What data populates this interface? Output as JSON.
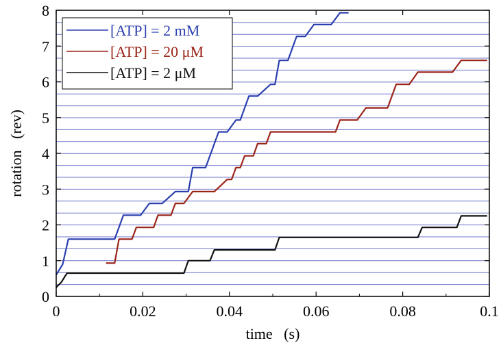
{
  "chart_data": {
    "type": "line",
    "title": "",
    "xlabel": "time   (s)",
    "ylabel": "rotation   (rev)",
    "xlim": [
      0,
      0.1
    ],
    "ylim": [
      0,
      8
    ],
    "xticks": [
      0,
      0.02,
      0.04,
      0.06,
      0.08,
      0.1
    ],
    "xtick_labels": [
      "0",
      "0.02",
      "0.04",
      "0.06",
      "0.08",
      "0.1"
    ],
    "yticks": [
      0,
      1,
      2,
      3,
      4,
      5,
      6,
      7,
      8
    ],
    "ytick_labels": [
      "0",
      "1",
      "2",
      "3",
      "4",
      "5",
      "6",
      "7",
      "8"
    ],
    "grid": {
      "horizontal_lines_every": 0.333,
      "color": "#6f74c8"
    },
    "legend": {
      "placement": "top-left"
    },
    "series": [
      {
        "name": "[ATP] = 2 mM",
        "color": "#2c3fae",
        "x": [
          0.0,
          0.0015,
          0.0028,
          0.0135,
          0.0155,
          0.0195,
          0.0215,
          0.0245,
          0.0275,
          0.0305,
          0.0315,
          0.0345,
          0.0375,
          0.0395,
          0.0415,
          0.0425,
          0.0445,
          0.0465,
          0.0495,
          0.0505,
          0.0515,
          0.0535,
          0.0555,
          0.0575,
          0.0595,
          0.0635,
          0.0655,
          0.0675
        ],
        "y": [
          0.6,
          0.9,
          1.6,
          1.6,
          2.27,
          2.27,
          2.6,
          2.6,
          2.93,
          2.93,
          3.6,
          3.6,
          4.6,
          4.6,
          4.93,
          4.93,
          5.6,
          5.6,
          5.93,
          5.93,
          6.6,
          6.6,
          7.27,
          7.27,
          7.6,
          7.6,
          7.93,
          7.93
        ]
      },
      {
        "name": "[ATP] = 20 μM",
        "color": "#9b2418",
        "x": [
          0.0115,
          0.0135,
          0.0145,
          0.0175,
          0.0185,
          0.0225,
          0.0235,
          0.0245,
          0.0265,
          0.0275,
          0.0295,
          0.0315,
          0.0345,
          0.0365,
          0.0395,
          0.0405,
          0.0415,
          0.0425,
          0.0435,
          0.0445,
          0.0455,
          0.0465,
          0.0475,
          0.0485,
          0.0495,
          0.0505,
          0.0525,
          0.0575,
          0.0645,
          0.0655,
          0.0665,
          0.0695,
          0.0715,
          0.0765,
          0.0785,
          0.0815,
          0.0835,
          0.0915,
          0.0935,
          0.0995
        ],
        "y": [
          0.93,
          0.93,
          1.6,
          1.6,
          1.93,
          1.93,
          2.27,
          2.27,
          2.27,
          2.6,
          2.6,
          2.93,
          2.93,
          2.93,
          3.27,
          3.27,
          3.6,
          3.6,
          3.93,
          3.93,
          3.93,
          4.27,
          4.27,
          4.27,
          4.6,
          4.6,
          4.6,
          4.6,
          4.6,
          4.93,
          4.93,
          4.93,
          5.27,
          5.27,
          5.93,
          5.93,
          6.27,
          6.27,
          6.6,
          6.6
        ]
      },
      {
        "name": "[ATP] = 2 μM",
        "color": "#111111",
        "x": [
          0.0,
          0.0012,
          0.0025,
          0.0295,
          0.0305,
          0.0355,
          0.0365,
          0.0505,
          0.0515,
          0.0835,
          0.0845,
          0.0925,
          0.0935,
          0.0995
        ],
        "y": [
          0.25,
          0.4,
          0.65,
          0.65,
          1.0,
          1.0,
          1.3,
          1.3,
          1.65,
          1.65,
          1.93,
          1.93,
          2.25,
          2.25
        ]
      }
    ]
  }
}
